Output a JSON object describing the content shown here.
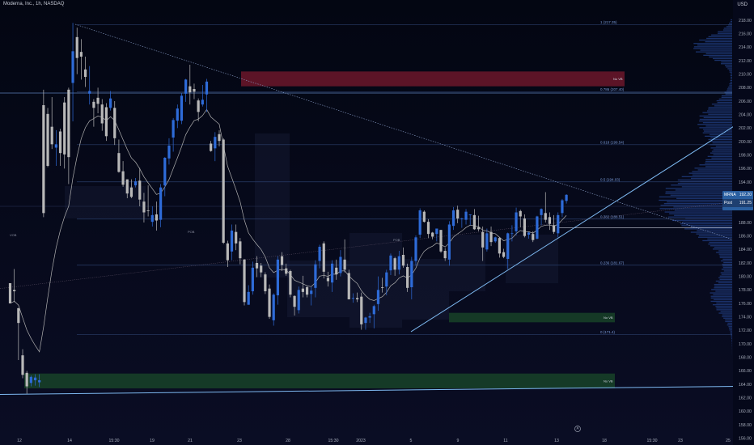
{
  "header": {
    "symbol_line": "Moderna, Inc., 1h, NASDAQ",
    "currency": "USD"
  },
  "ticker_box": {
    "symbol": "MRNA",
    "price": "192.20",
    "label2": "Post",
    "price2": "191.25"
  },
  "colors": {
    "up": "#2e6bd8",
    "down": "#b8b8b8",
    "fib": "#2a3e6a",
    "trend": "#7db8f0",
    "ema": "#b0b0b0",
    "supply": "#7a1a2e",
    "demand": "#1a4a2a"
  },
  "chart_data": {
    "type": "candlestick",
    "y_ticks": [
      "218.00",
      "216.00",
      "214.00",
      "212.00",
      "210.00",
      "208.00",
      "206.00",
      "204.00",
      "202.00",
      "200.00",
      "198.00",
      "196.00",
      "194.00",
      "192.00",
      "190.00",
      "188.00",
      "186.00",
      "184.00",
      "182.00",
      "180.00",
      "178.00",
      "176.00",
      "174.00",
      "172.00",
      "170.00",
      "168.00",
      "166.00",
      "164.00",
      "162.00",
      "160.00",
      "158.00",
      "156.00"
    ],
    "ylim": [
      155,
      221
    ],
    "x_ticks": [
      "12",
      "14",
      "15:30",
      "19",
      "21",
      "23",
      "28",
      "15:30",
      "2023",
      "5",
      "9",
      "11",
      "13",
      "18",
      "15:30",
      "23",
      "25"
    ],
    "fib_levels": [
      {
        "label": "1 (217.35)",
        "value": 217.35
      },
      {
        "label": "0.786 (207.40)",
        "value": 207.4
      },
      {
        "label": "0.618 (199.54)",
        "value": 199.54
      },
      {
        "label": "0.5 (194.03)",
        "value": 194.03
      },
      {
        "label": "0.382 (188.51)",
        "value": 188.51
      },
      {
        "label": "0.236 (181.67)",
        "value": 181.67
      },
      {
        "label": "0 (171.4)",
        "value": 171.4
      }
    ],
    "zones": [
      {
        "label": "No VB",
        "low": 208.2,
        "high": 210.4,
        "kind": "supply"
      },
      {
        "label": "No VB",
        "low": 173.2,
        "high": 174.6,
        "kind": "demand"
      },
      {
        "label": "No VB",
        "low": 163.4,
        "high": 165.6,
        "kind": "demand"
      }
    ],
    "annotations": [
      "VOB",
      "POB",
      "POB"
    ],
    "candles": [
      [
        179.0,
        179.0,
        176.0,
        176.0
      ],
      [
        178.0,
        181.1,
        176.2,
        177.8
      ],
      [
        175.3,
        175.3,
        167.6,
        173.1
      ],
      [
        168.3,
        169.2,
        164.9,
        165.4
      ],
      [
        165.7,
        166.0,
        162.6,
        163.7
      ],
      [
        164.2,
        165.3,
        163.7,
        165.1
      ],
      [
        164.6,
        165.5,
        163.8,
        165.0
      ],
      [
        164.3,
        165.5,
        163.6,
        164.6
      ],
      [
        205.4,
        207.7,
        188.8,
        189.4
      ],
      [
        204.1,
        205.0,
        196.2,
        196.4
      ],
      [
        202.2,
        206.6,
        198.9,
        199.6
      ],
      [
        199.1,
        201.7,
        196.4,
        199.6
      ],
      [
        201.5,
        201.9,
        196.4,
        198.3
      ],
      [
        205.8,
        206.6,
        196.0,
        198.1
      ],
      [
        207.7,
        208.0,
        193.7,
        197.7
      ],
      [
        208.7,
        217.6,
        203.0,
        213.4
      ],
      [
        215.5,
        216.9,
        210.0,
        212.4
      ],
      [
        213.3,
        215.2,
        209.2,
        212.6
      ],
      [
        210.7,
        212.6,
        208.1,
        209.6
      ],
      [
        207.1,
        211.2,
        205.5,
        207.5
      ],
      [
        205.9,
        206.3,
        202.2,
        205.0
      ],
      [
        206.5,
        208.0,
        204.2,
        205.6
      ],
      [
        205.5,
        206.3,
        201.6,
        202.7
      ],
      [
        205.1,
        205.7,
        200.1,
        200.8
      ],
      [
        205.0,
        207.5,
        204.6,
        206.4
      ],
      [
        205.0,
        206.0,
        199.5,
        200.5
      ],
      [
        198.3,
        200.3,
        195.4,
        195.5
      ],
      [
        195.6,
        197.1,
        193.3,
        193.6
      ],
      [
        194.4,
        194.4,
        191.6,
        192.3
      ],
      [
        193.2,
        194.4,
        191.6,
        191.8
      ],
      [
        193.5,
        194.6,
        193.2,
        194.1
      ],
      [
        194.2,
        196.1,
        190.4,
        191.4
      ],
      [
        191.1,
        192.4,
        188.0,
        189.5
      ],
      [
        189.8,
        193.5,
        188.9,
        189.7
      ],
      [
        188.1,
        190.4,
        187.4,
        189.1
      ],
      [
        189.2,
        191.1,
        186.8,
        188.3
      ],
      [
        188.4,
        193.7,
        187.3,
        193.2
      ],
      [
        193.5,
        197.7,
        191.9,
        197.6
      ],
      [
        197.5,
        200.5,
        196.6,
        199.4
      ],
      [
        200.6,
        203.5,
        198.5,
        203.2
      ],
      [
        203.1,
        205.5,
        202.0,
        204.9
      ],
      [
        203.1,
        207.2,
        202.6,
        206.8
      ],
      [
        207.1,
        209.3,
        205.9,
        209.2
      ],
      [
        208.2,
        211.4,
        205.5,
        207.3
      ],
      [
        207.8,
        208.6,
        206.3,
        207.4
      ],
      [
        206.1,
        206.4,
        203.0,
        204.4
      ],
      [
        205.5,
        208.4,
        205.2,
        206.2
      ],
      [
        207.0,
        209.3,
        204.4,
        208.9
      ],
      [
        199.7,
        200.1,
        198.5,
        198.6
      ],
      [
        199.0,
        201.4,
        197.1,
        200.7
      ],
      [
        201.1,
        201.7,
        199.3,
        200.1
      ],
      [
        200.3,
        200.5,
        184.8,
        185.0
      ],
      [
        184.9,
        185.3,
        181.4,
        182.4
      ],
      [
        183.7,
        187.7,
        182.4,
        186.8
      ],
      [
        186.6,
        187.7,
        183.9,
        184.9
      ],
      [
        185.2,
        185.7,
        181.8,
        182.7
      ],
      [
        182.5,
        182.6,
        175.7,
        176.2
      ],
      [
        175.8,
        178.7,
        175.8,
        177.7
      ],
      [
        177.8,
        182.2,
        177.3,
        181.3
      ],
      [
        182.0,
        183.0,
        179.9,
        181.2
      ],
      [
        181.6,
        182.0,
        179.9,
        180.6
      ],
      [
        180.3,
        180.6,
        177.4,
        177.8
      ],
      [
        178.2,
        178.8,
        173.7,
        174.0
      ],
      [
        173.5,
        177.5,
        172.7,
        177.3
      ],
      [
        177.2,
        183.0,
        175.8,
        182.5
      ],
      [
        183.0,
        183.6,
        180.8,
        181.7
      ],
      [
        181.2,
        181.9,
        180.1,
        180.4
      ],
      [
        180.8,
        181.0,
        176.9,
        177.3
      ],
      [
        177.1,
        177.2,
        174.2,
        175.5
      ],
      [
        175.0,
        178.5,
        174.5,
        178.0
      ],
      [
        178.2,
        180.1,
        176.9,
        177.7
      ],
      [
        178.4,
        178.6,
        176.9,
        177.3
      ],
      [
        177.4,
        178.4,
        175.7,
        177.9
      ],
      [
        178.3,
        182.4,
        176.9,
        181.8
      ],
      [
        182.3,
        184.7,
        181.2,
        184.4
      ],
      [
        184.9,
        185.2,
        179.7,
        180.7
      ],
      [
        179.8,
        180.7,
        178.5,
        179.3
      ],
      [
        179.1,
        182.4,
        177.7,
        181.9
      ],
      [
        181.3,
        182.5,
        179.5,
        180.3
      ],
      [
        180.5,
        183.9,
        180.0,
        182.9
      ],
      [
        182.5,
        185.5,
        180.6,
        181.0
      ],
      [
        180.5,
        181.0,
        176.6,
        176.6
      ],
      [
        176.7,
        177.5,
        176.1,
        176.8
      ],
      [
        176.8,
        177.6,
        176.2,
        176.6
      ],
      [
        177.0,
        177.6,
        172.1,
        172.9
      ],
      [
        173.1,
        174.0,
        172.1,
        173.9
      ],
      [
        173.9,
        174.6,
        173.1,
        174.1
      ],
      [
        174.4,
        175.8,
        172.3,
        175.6
      ],
      [
        175.9,
        180.0,
        174.9,
        178.0
      ],
      [
        178.4,
        179.8,
        177.6,
        178.3
      ],
      [
        178.5,
        181.0,
        177.2,
        180.6
      ],
      [
        180.9,
        183.4,
        180.2,
        183.1
      ],
      [
        182.7,
        182.9,
        180.1,
        181.0
      ],
      [
        181.0,
        183.8,
        180.3,
        183.0
      ],
      [
        183.2,
        184.3,
        181.3,
        181.6
      ],
      [
        181.4,
        181.9,
        177.7,
        178.3
      ],
      [
        178.4,
        182.9,
        176.6,
        182.3
      ],
      [
        182.3,
        186.1,
        181.6,
        185.8
      ],
      [
        186.2,
        190.1,
        185.7,
        189.8
      ],
      [
        189.6,
        189.8,
        188.0,
        188.1
      ],
      [
        188.1,
        188.5,
        185.7,
        186.3
      ],
      [
        186.5,
        186.6,
        185.5,
        185.9
      ],
      [
        186.3,
        187.1,
        185.2,
        187.1
      ],
      [
        186.9,
        186.9,
        183.5,
        183.7
      ],
      [
        183.8,
        184.2,
        182.3,
        182.7
      ],
      [
        182.5,
        188.2,
        181.6,
        187.7
      ],
      [
        187.5,
        190.3,
        186.9,
        189.8
      ],
      [
        189.9,
        190.5,
        187.9,
        188.6
      ],
      [
        188.5,
        188.7,
        187.2,
        188.6
      ],
      [
        188.4,
        190.0,
        187.7,
        189.6
      ],
      [
        189.1,
        189.2,
        187.6,
        189.2
      ],
      [
        189.1,
        190.0,
        186.9,
        187.0
      ],
      [
        187.3,
        189.0,
        186.7,
        187.0
      ],
      [
        186.6,
        187.4,
        182.3,
        184.3
      ],
      [
        184.0,
        187.1,
        183.7,
        186.4
      ],
      [
        186.6,
        187.4,
        184.5,
        185.1
      ],
      [
        185.2,
        185.9,
        185.0,
        185.8
      ],
      [
        185.7,
        185.8,
        182.8,
        183.4
      ],
      [
        183.6,
        184.1,
        182.7,
        182.9
      ],
      [
        182.6,
        186.5,
        181.1,
        186.4
      ],
      [
        186.4,
        187.6,
        185.2,
        186.4
      ],
      [
        186.7,
        190.2,
        186.1,
        189.5
      ],
      [
        189.7,
        189.9,
        187.3,
        188.9
      ],
      [
        188.6,
        189.2,
        185.8,
        186.0
      ],
      [
        186.2,
        186.6,
        185.6,
        186.5
      ],
      [
        186.3,
        186.7,
        185.1,
        185.4
      ],
      [
        185.6,
        189.0,
        185.5,
        188.9
      ],
      [
        189.1,
        190.1,
        187.6,
        190.0
      ],
      [
        189.4,
        192.5,
        188.0,
        188.4
      ],
      [
        188.8,
        189.5,
        186.9,
        187.8
      ],
      [
        187.6,
        189.1,
        186.3,
        186.6
      ],
      [
        186.4,
        189.5,
        185.8,
        189.1
      ],
      [
        189.4,
        191.5,
        188.8,
        191.3
      ],
      [
        191.2,
        192.2,
        190.8,
        192.1
      ]
    ],
    "series": [
      {
        "name": "",
        "type": "ema"
      }
    ]
  }
}
